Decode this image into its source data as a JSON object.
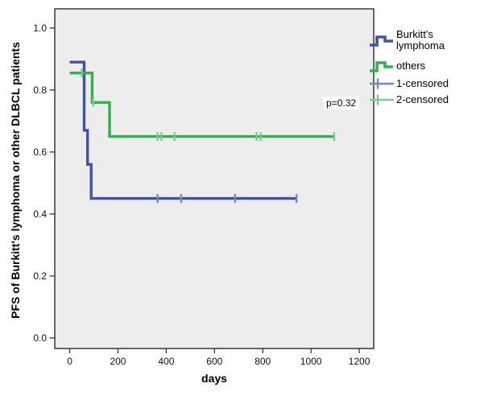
{
  "chart_data": {
    "type": "line",
    "subtype": "kaplan-meier-step",
    "title": "",
    "xlabel": "days",
    "ylabel": "PFS of Burkitt's lymphoma or other DLBCL patients",
    "xlim": [
      -62,
      1260
    ],
    "ylim": [
      -0.034,
      1.062
    ],
    "x_ticks": [
      0,
      200,
      400,
      600,
      800,
      1000,
      1200
    ],
    "y_ticks": [
      1.0,
      0.8,
      0.6,
      0.4,
      0.2,
      0.0
    ],
    "y_tick_labels": [
      "1.0",
      "0.8",
      "0.6",
      "0.4",
      "0.2",
      "0.0"
    ],
    "grid": false,
    "plot_bg": "#EDEDED",
    "frame_color": "#2B2B2B",
    "annotation": {
      "text": "p=0.32"
    },
    "series": [
      {
        "name": "Burkitt's lymphoma",
        "color": "#4053A4",
        "censor_color": "#7687C6",
        "steps": [
          [
            0,
            0.89
          ],
          [
            60,
            0.89
          ],
          [
            60,
            0.67
          ],
          [
            74,
            0.67
          ],
          [
            74,
            0.56
          ],
          [
            89,
            0.56
          ],
          [
            89,
            0.45
          ],
          [
            940,
            0.45
          ]
        ],
        "censored": [
          [
            364,
            0.45
          ],
          [
            462,
            0.45
          ],
          [
            685,
            0.45
          ],
          [
            940,
            0.45
          ]
        ]
      },
      {
        "name": "others",
        "color": "#30B44A",
        "censor_color": "#7ECB90",
        "steps": [
          [
            0,
            0.855
          ],
          [
            93,
            0.855
          ],
          [
            93,
            0.76
          ],
          [
            165,
            0.76
          ],
          [
            165,
            0.65
          ],
          [
            1096,
            0.65
          ]
        ],
        "censored": [
          [
            50,
            0.855
          ],
          [
            97,
            0.76
          ],
          [
            364,
            0.65
          ],
          [
            380,
            0.65
          ],
          [
            434,
            0.65
          ],
          [
            774,
            0.65
          ],
          [
            791,
            0.65
          ],
          [
            1096,
            0.65
          ]
        ]
      }
    ],
    "legend": {
      "position": "right",
      "items": [
        {
          "label": "Burkitt's lymphoma",
          "symbol": "step-line",
          "color": "#4053A4"
        },
        {
          "label": "others",
          "symbol": "step-line",
          "color": "#30B44A"
        },
        {
          "label": "1-censored",
          "symbol": "plus-tick",
          "color": "#7687C6"
        },
        {
          "label": "2-censored",
          "symbol": "plus-tick",
          "color": "#7ECB90"
        }
      ]
    }
  }
}
